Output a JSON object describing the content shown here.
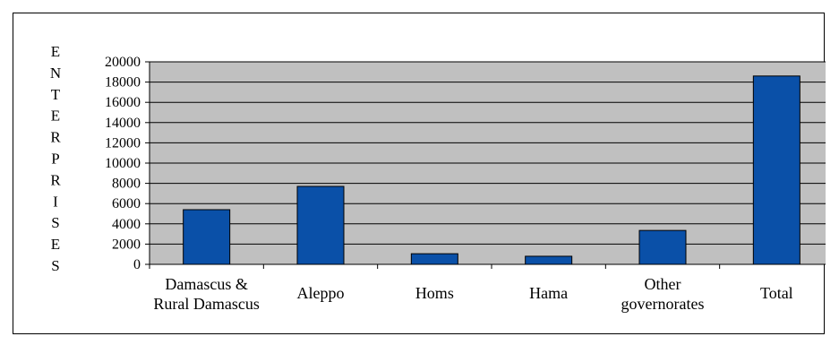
{
  "chart_data": {
    "type": "bar",
    "title": "",
    "ylabel": "ENTERPRISES",
    "xlabel": "",
    "ylim": [
      0,
      20000
    ],
    "yticks": [
      0,
      2000,
      4000,
      6000,
      8000,
      10000,
      12000,
      14000,
      16000,
      18000,
      20000
    ],
    "categories": [
      [
        "Damascus &",
        "Rural Damascus"
      ],
      [
        "Aleppo"
      ],
      [
        "Homs"
      ],
      [
        "Hama"
      ],
      [
        "Other",
        "governorates"
      ],
      [
        "Total"
      ]
    ],
    "values": [
      5400,
      7700,
      1050,
      800,
      3350,
      18600
    ],
    "grid": true,
    "colors": {
      "bar": "#0a50a8",
      "plot_background": "#c0c0c0",
      "gridline": "#000000"
    }
  }
}
